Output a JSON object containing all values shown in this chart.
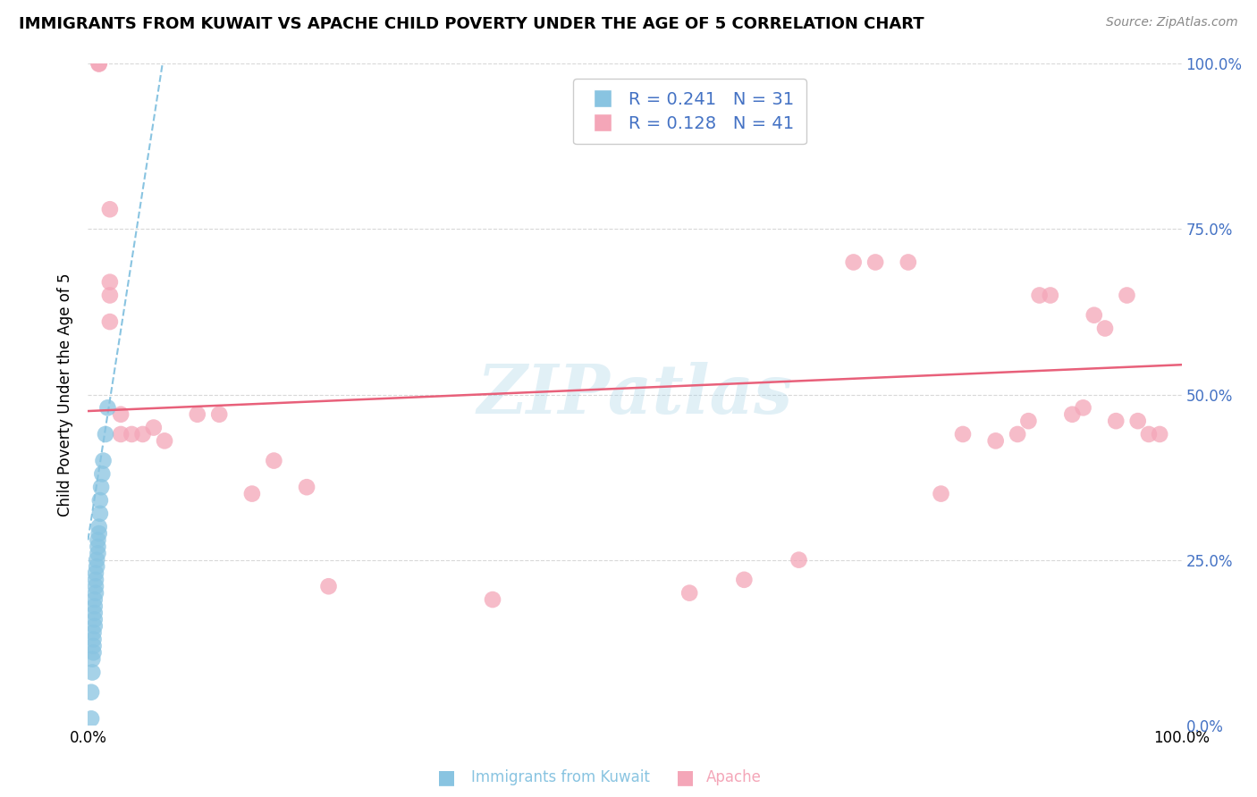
{
  "title": "IMMIGRANTS FROM KUWAIT VS APACHE CHILD POVERTY UNDER THE AGE OF 5 CORRELATION CHART",
  "source": "Source: ZipAtlas.com",
  "ylabel": "Child Poverty Under the Age of 5",
  "xlim": [
    0,
    1
  ],
  "ylim": [
    0,
    1
  ],
  "legend_r1": "R = 0.241",
  "legend_n1": "N = 31",
  "legend_r2": "R = 0.128",
  "legend_n2": "N = 41",
  "color_blue": "#89c4e1",
  "color_pink": "#f4a6b8",
  "color_blue_line": "#89c4e1",
  "color_pink_line": "#e8607a",
  "color_blue_text": "#4472c4",
  "watermark": "ZIPatlas",
  "kuwait_x": [
    0.003,
    0.003,
    0.004,
    0.004,
    0.005,
    0.005,
    0.005,
    0.005,
    0.006,
    0.006,
    0.006,
    0.006,
    0.006,
    0.007,
    0.007,
    0.007,
    0.007,
    0.008,
    0.008,
    0.009,
    0.009,
    0.009,
    0.01,
    0.01,
    0.011,
    0.011,
    0.012,
    0.013,
    0.014,
    0.016,
    0.018
  ],
  "kuwait_y": [
    0.01,
    0.05,
    0.08,
    0.1,
    0.11,
    0.12,
    0.13,
    0.14,
    0.15,
    0.16,
    0.17,
    0.18,
    0.19,
    0.2,
    0.21,
    0.22,
    0.23,
    0.24,
    0.25,
    0.26,
    0.27,
    0.28,
    0.29,
    0.3,
    0.32,
    0.34,
    0.36,
    0.38,
    0.4,
    0.44,
    0.48
  ],
  "apache_x": [
    0.01,
    0.01,
    0.02,
    0.02,
    0.02,
    0.02,
    0.03,
    0.03,
    0.04,
    0.05,
    0.06,
    0.07,
    0.1,
    0.12,
    0.15,
    0.17,
    0.2,
    0.22,
    0.37,
    0.55,
    0.6,
    0.65,
    0.7,
    0.72,
    0.75,
    0.78,
    0.8,
    0.83,
    0.85,
    0.86,
    0.87,
    0.88,
    0.9,
    0.91,
    0.92,
    0.93,
    0.94,
    0.95,
    0.96,
    0.97,
    0.98
  ],
  "apache_y": [
    1.0,
    1.0,
    0.78,
    0.67,
    0.65,
    0.61,
    0.47,
    0.44,
    0.44,
    0.44,
    0.45,
    0.43,
    0.47,
    0.47,
    0.35,
    0.4,
    0.36,
    0.21,
    0.19,
    0.2,
    0.22,
    0.25,
    0.7,
    0.7,
    0.7,
    0.35,
    0.44,
    0.43,
    0.44,
    0.46,
    0.65,
    0.65,
    0.47,
    0.48,
    0.62,
    0.6,
    0.46,
    0.65,
    0.46,
    0.44,
    0.44
  ],
  "kuwait_trend_x": [
    0.0,
    0.07
  ],
  "kuwait_trend_y": [
    0.28,
    1.02
  ],
  "apache_trend_x": [
    0.0,
    1.0
  ],
  "apache_trend_y": [
    0.475,
    0.545
  ],
  "background_color": "#ffffff",
  "grid_color": "#d8d8d8",
  "grid_style": "--"
}
